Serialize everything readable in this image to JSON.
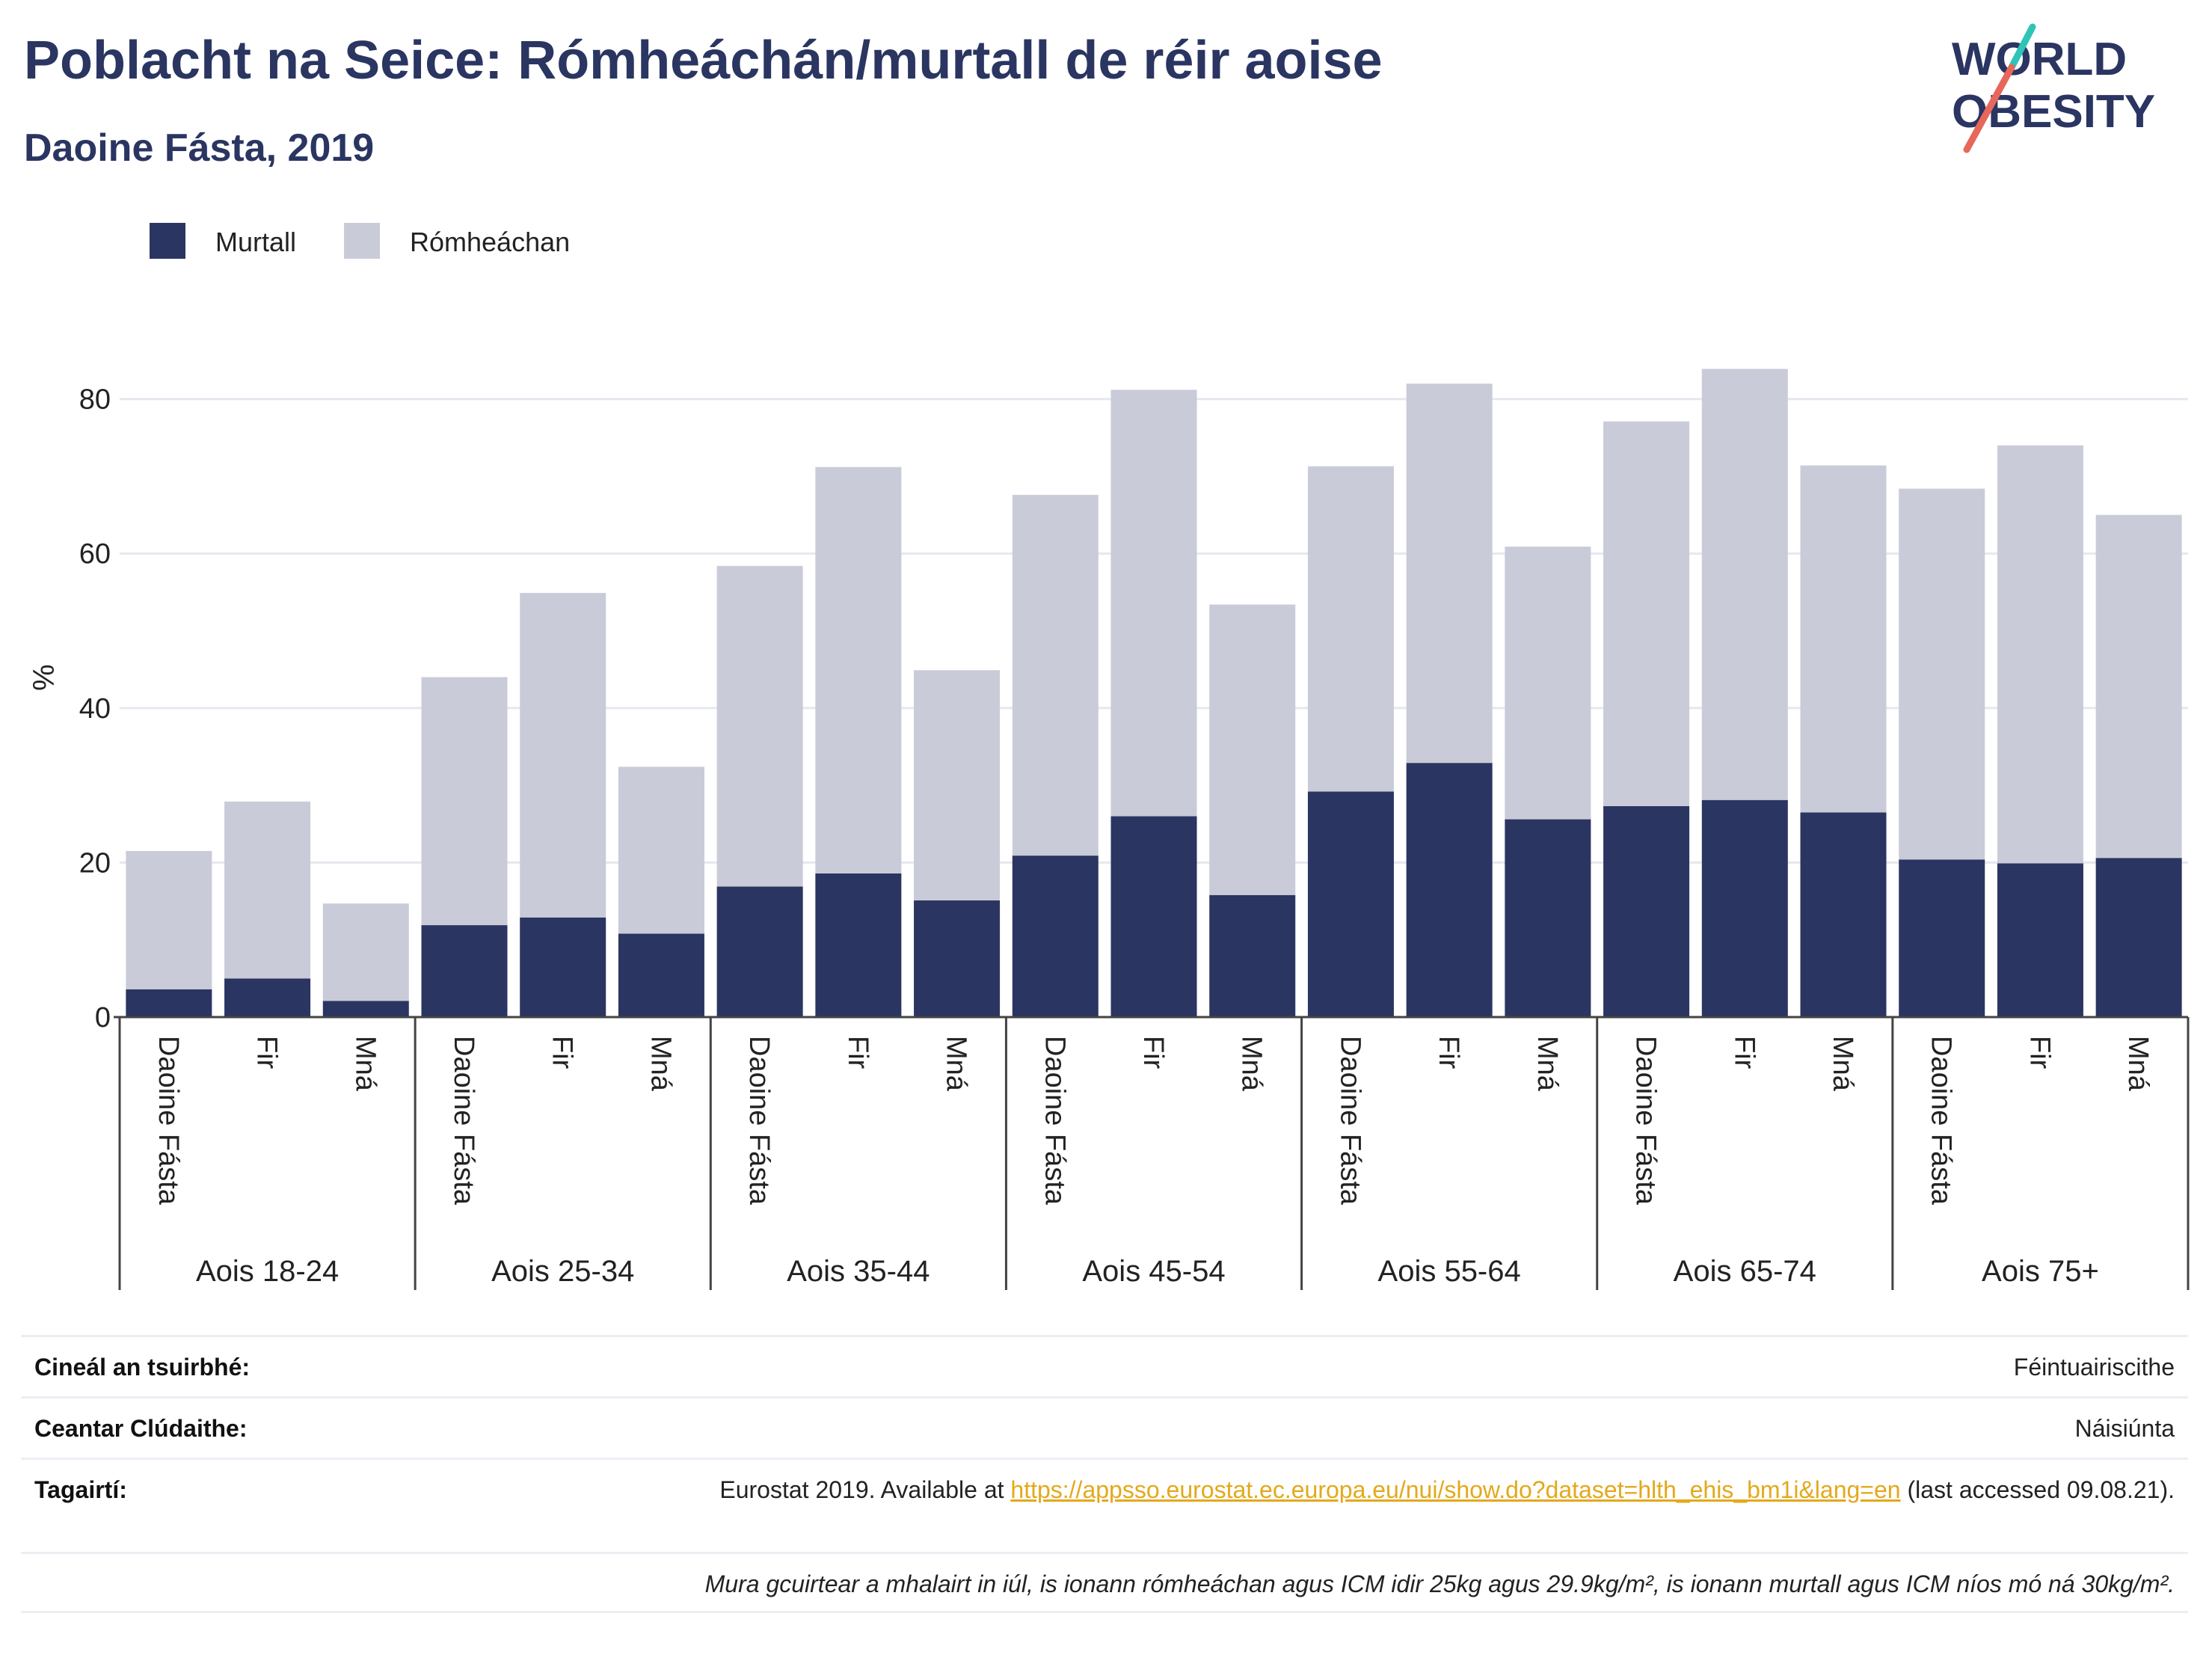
{
  "header": {
    "title": "Poblacht na Seice: Rómheáchán/murtall de réir aoise",
    "subtitle": "Daoine Fásta, 2019"
  },
  "logo": {
    "line1": "WORLD",
    "line2": "OBESITY"
  },
  "colors": {
    "obese": "#2a3561",
    "overweight": "#c9cbd8",
    "title": "#2a3561",
    "link": "#e3a91c",
    "logo_teal": "#2ec4b6",
    "logo_coral": "#e8675b"
  },
  "chart_data": {
    "type": "bar",
    "stacked": true,
    "ylabel": "%",
    "ylim": [
      0,
      90
    ],
    "yticks": [
      0,
      20,
      40,
      60,
      80
    ],
    "grid": true,
    "legend_position": "top-left",
    "groups": [
      "Aois 18-24",
      "Aois 25-34",
      "Aois 35-44",
      "Aois 45-54",
      "Aois 55-64",
      "Aois 65-74",
      "Aois 75+"
    ],
    "subcategories": [
      "Daoine Fásta",
      "Fir",
      "Mná"
    ],
    "series": [
      {
        "name": "Murtall",
        "values": [
          [
            3.6,
            5.0,
            2.1
          ],
          [
            11.9,
            12.9,
            10.8
          ],
          [
            16.9,
            18.6,
            15.1
          ],
          [
            20.9,
            26.0,
            15.8
          ],
          [
            29.2,
            32.9,
            25.6
          ],
          [
            27.3,
            28.1,
            26.5
          ],
          [
            20.4,
            19.9,
            20.6
          ]
        ]
      },
      {
        "name": "Rómheáchan",
        "values": [
          [
            17.9,
            22.9,
            12.6
          ],
          [
            32.1,
            42.0,
            21.6
          ],
          [
            41.5,
            52.6,
            29.8
          ],
          [
            46.7,
            55.2,
            37.6
          ],
          [
            42.1,
            49.1,
            35.3
          ],
          [
            49.8,
            55.8,
            44.9
          ],
          [
            48.0,
            54.1,
            44.4
          ]
        ]
      }
    ]
  },
  "info": {
    "survey_type_label": "Cineál an tsuirbhé:",
    "survey_type_value": "Féintuairiscithe",
    "coverage_label": "Ceantar Clúdaithe:",
    "coverage_value": "Náisiúnta",
    "references_label": "Tagairtí:",
    "references_prefix": "Eurostat 2019. Available at ",
    "references_link": "https://appsso.eurostat.ec.europa.eu/nui/show.do?dataset=hlth_ehis_bm1i&lang=en",
    "references_suffix": " (last accessed 09.08.21).",
    "note": "Mura gcuirtear a mhalairt in iúl, is ionann rómheáchan agus ICM idir 25kg agus 29.9kg/m², is ionann murtall agus ICM níos mó ná 30kg/m²."
  }
}
